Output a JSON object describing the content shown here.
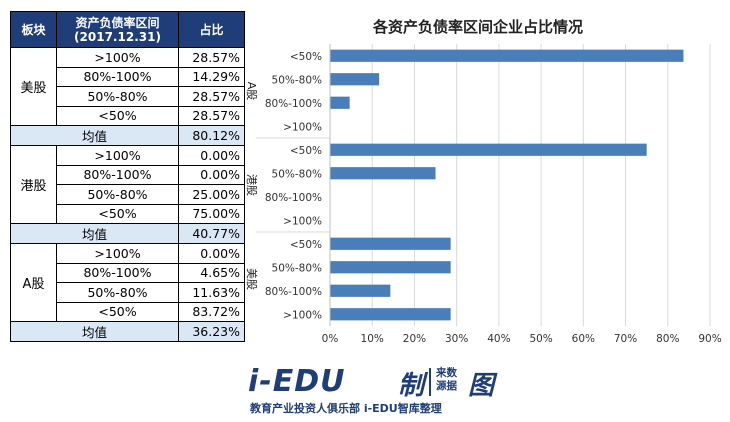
{
  "table": {
    "headers": {
      "group": "板块",
      "range_line1": "资产负债率区间",
      "range_line2": "(2017.12.31)",
      "pct": "占比"
    },
    "groups": [
      {
        "name": "美股",
        "rows": [
          {
            "range": ">100%",
            "pct": "28.57%"
          },
          {
            "range": "80%-100%",
            "pct": "14.29%"
          },
          {
            "range": "50%-80%",
            "pct": "28.57%"
          },
          {
            "range": "<50%",
            "pct": "28.57%"
          }
        ],
        "avg_label": "均值",
        "avg": "80.12%"
      },
      {
        "name": "港股",
        "rows": [
          {
            "range": ">100%",
            "pct": "0.00%"
          },
          {
            "range": "80%-100%",
            "pct": "0.00%"
          },
          {
            "range": "50%-80%",
            "pct": "25.00%"
          },
          {
            "range": "<50%",
            "pct": "75.00%"
          }
        ],
        "avg_label": "均值",
        "avg": "40.77%"
      },
      {
        "name": "A股",
        "rows": [
          {
            "range": ">100%",
            "pct": "0.00%"
          },
          {
            "range": "80%-100%",
            "pct": "4.65%"
          },
          {
            "range": "50%-80%",
            "pct": "11.63%"
          },
          {
            "range": "<50%",
            "pct": "83.72%"
          }
        ],
        "avg_label": "均值",
        "avg": "36.23%"
      }
    ]
  },
  "chart_data": {
    "type": "bar",
    "orientation": "horizontal",
    "title": "各资产负债率区间企业占比情况",
    "xlabel": "",
    "ylabel": "",
    "xlim": [
      0,
      90
    ],
    "x_ticks": [
      "0%",
      "10%",
      "20%",
      "30%",
      "40%",
      "50%",
      "60%",
      "70%",
      "80%",
      "90%"
    ],
    "grid": "vertical",
    "bar_color": "#4a7ebb",
    "groups": [
      {
        "name": "A股",
        "categories": [
          "<50%",
          "50%-80%",
          "80%-100%",
          ">100%"
        ],
        "values": [
          83.72,
          11.63,
          4.65,
          0.0
        ]
      },
      {
        "name": "港股",
        "categories": [
          "<50%",
          "50%-80%",
          "80%-100%",
          ">100%"
        ],
        "values": [
          75.0,
          25.0,
          0.0,
          0.0
        ]
      },
      {
        "name": "美股",
        "categories": [
          "<50%",
          "50%-80%",
          "80%-100%",
          ">100%"
        ],
        "values": [
          28.57,
          28.57,
          14.29,
          28.57
        ]
      }
    ]
  },
  "footer": {
    "brand": "i-EDU",
    "made": "制",
    "source_line1": "来数",
    "source_line2": "源据",
    "tu": "图",
    "slogan": "教育产业投资人俱乐部 i-EDU智库整理"
  }
}
